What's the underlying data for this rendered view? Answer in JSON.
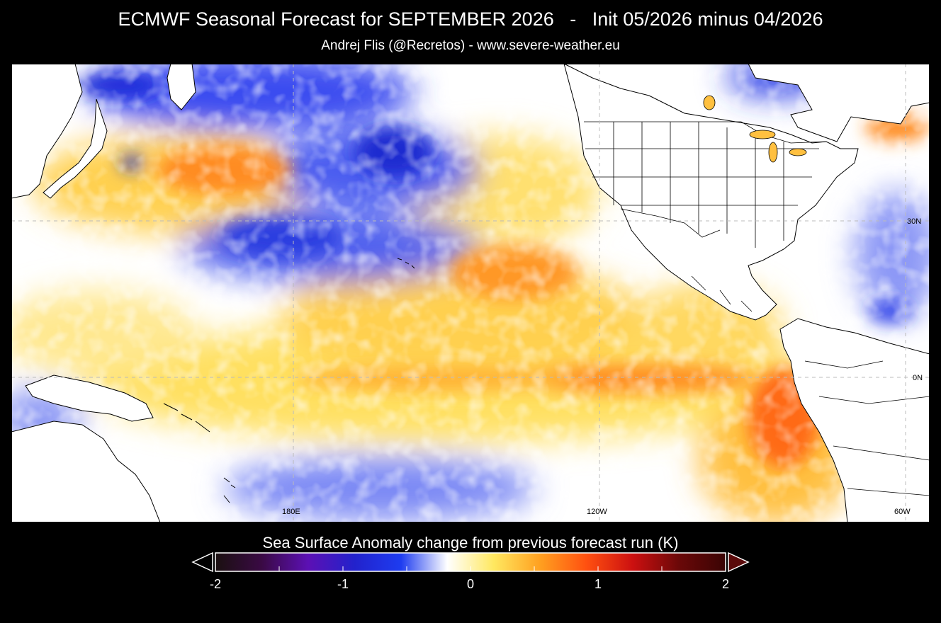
{
  "header": {
    "title": "ECMWF Seasonal Forecast for SEPTEMBER 2026   -   Init 05/2026 minus 04/2026",
    "subtitle": "Andrej Flis (@Recretos) - www.severe-weather.eu"
  },
  "map": {
    "region": "Pacific Ocean",
    "variable": "sea surface temperature anomaly change",
    "grid_labels": {
      "lat_30n": "30N",
      "lat_0n": "0N",
      "lon_180e": "180E",
      "lon_120w": "120W",
      "lon_60w": "60W"
    },
    "colors": {
      "ocean_neutral": "#ffffff",
      "land": "#ffffff",
      "coastline": "#000000",
      "gridline": "#aaaaaa"
    }
  },
  "colorbar": {
    "title": "Sea Surface Anomaly change from previous forecast run (K)",
    "min": -2,
    "max": 2,
    "ticks": [
      "-2",
      "-1",
      "0",
      "1",
      "2"
    ],
    "unit": "K",
    "stops": [
      "#1a1010",
      "#3a0a44",
      "#5c10b4",
      "#2222cc",
      "#1e3cf0",
      "#ffffff",
      "#ffe860",
      "#ffa020",
      "#ff5010",
      "#cc1010",
      "#6a0808",
      "#3a0404"
    ],
    "under_color": "#000000",
    "over_color": "#5a0a0a"
  }
}
